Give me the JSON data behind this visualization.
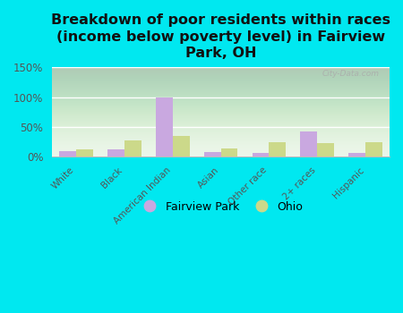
{
  "title": "Breakdown of poor residents within races\n(income below poverty level) in Fairview\nPark, OH",
  "categories": [
    "White",
    "Black",
    "American Indian",
    "Asian",
    "Other race",
    "2+ races",
    "Hispanic"
  ],
  "fairview_park": [
    10,
    12,
    100,
    8,
    6,
    42,
    7
  ],
  "ohio": [
    13,
    28,
    35,
    14,
    25,
    23,
    24
  ],
  "fairview_color": "#c9a8e0",
  "ohio_color": "#ccd98a",
  "bg_color": "#00e8f0",
  "ylim": [
    0,
    150
  ],
  "yticks": [
    0,
    50,
    100,
    150
  ],
  "ytick_labels": [
    "0%",
    "50%",
    "100%",
    "150%"
  ],
  "bar_width": 0.35,
  "title_fontsize": 11.5,
  "watermark": "City-Data.com"
}
